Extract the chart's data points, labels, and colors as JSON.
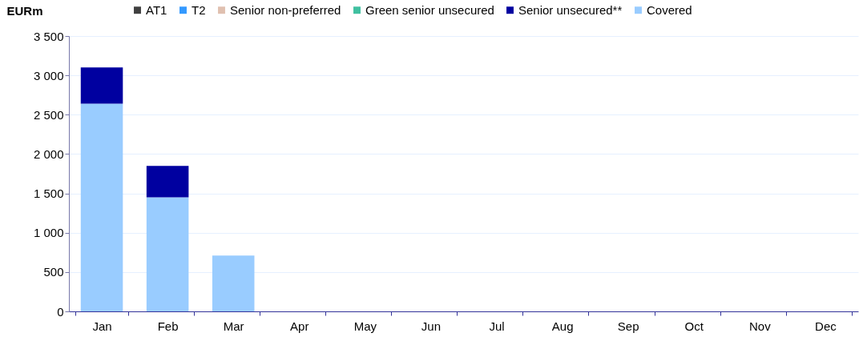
{
  "chart_data": {
    "type": "bar",
    "stacked": true,
    "ylabel": "EURm",
    "categories": [
      "Jan",
      "Feb",
      "Mar",
      "Apr",
      "May",
      "Jun",
      "Jul",
      "Aug",
      "Sep",
      "Oct",
      "Nov",
      "Dec"
    ],
    "series": [
      {
        "name": "Covered",
        "color": "#99ccff",
        "values": [
          2640,
          1450,
          710,
          0,
          0,
          0,
          0,
          0,
          0,
          0,
          0,
          0
        ]
      },
      {
        "name": "Senior unsecured**",
        "color": "#0000a0",
        "values": [
          460,
          400,
          0,
          0,
          0,
          0,
          0,
          0,
          0,
          0,
          0,
          0
        ]
      },
      {
        "name": "Green senior unsecured",
        "color": "#40c0a0",
        "values": [
          0,
          0,
          0,
          0,
          0,
          0,
          0,
          0,
          0,
          0,
          0,
          0
        ]
      },
      {
        "name": "Senior non-preferred",
        "color": "#e0c0b0",
        "values": [
          0,
          0,
          0,
          0,
          0,
          0,
          0,
          0,
          0,
          0,
          0,
          0
        ]
      },
      {
        "name": "T2",
        "color": "#3399ff",
        "values": [
          0,
          0,
          0,
          0,
          0,
          0,
          0,
          0,
          0,
          0,
          0,
          0
        ]
      },
      {
        "name": "AT1",
        "color": "#404040",
        "values": [
          0,
          0,
          0,
          0,
          0,
          0,
          0,
          0,
          0,
          0,
          0,
          0
        ]
      }
    ],
    "ylim": [
      0,
      3500
    ],
    "yticks": [
      0,
      500,
      {
        "value": 1000,
        "label": "1 000"
      },
      {
        "value": 1500,
        "label": "1 500"
      },
      {
        "value": 2000,
        "label": "2 000"
      },
      {
        "value": 2500,
        "label": "2 500"
      },
      {
        "value": 3000,
        "label": "3 000"
      },
      {
        "value": 3500,
        "label": "3 500"
      }
    ],
    "grid": "y",
    "legend": "top"
  }
}
